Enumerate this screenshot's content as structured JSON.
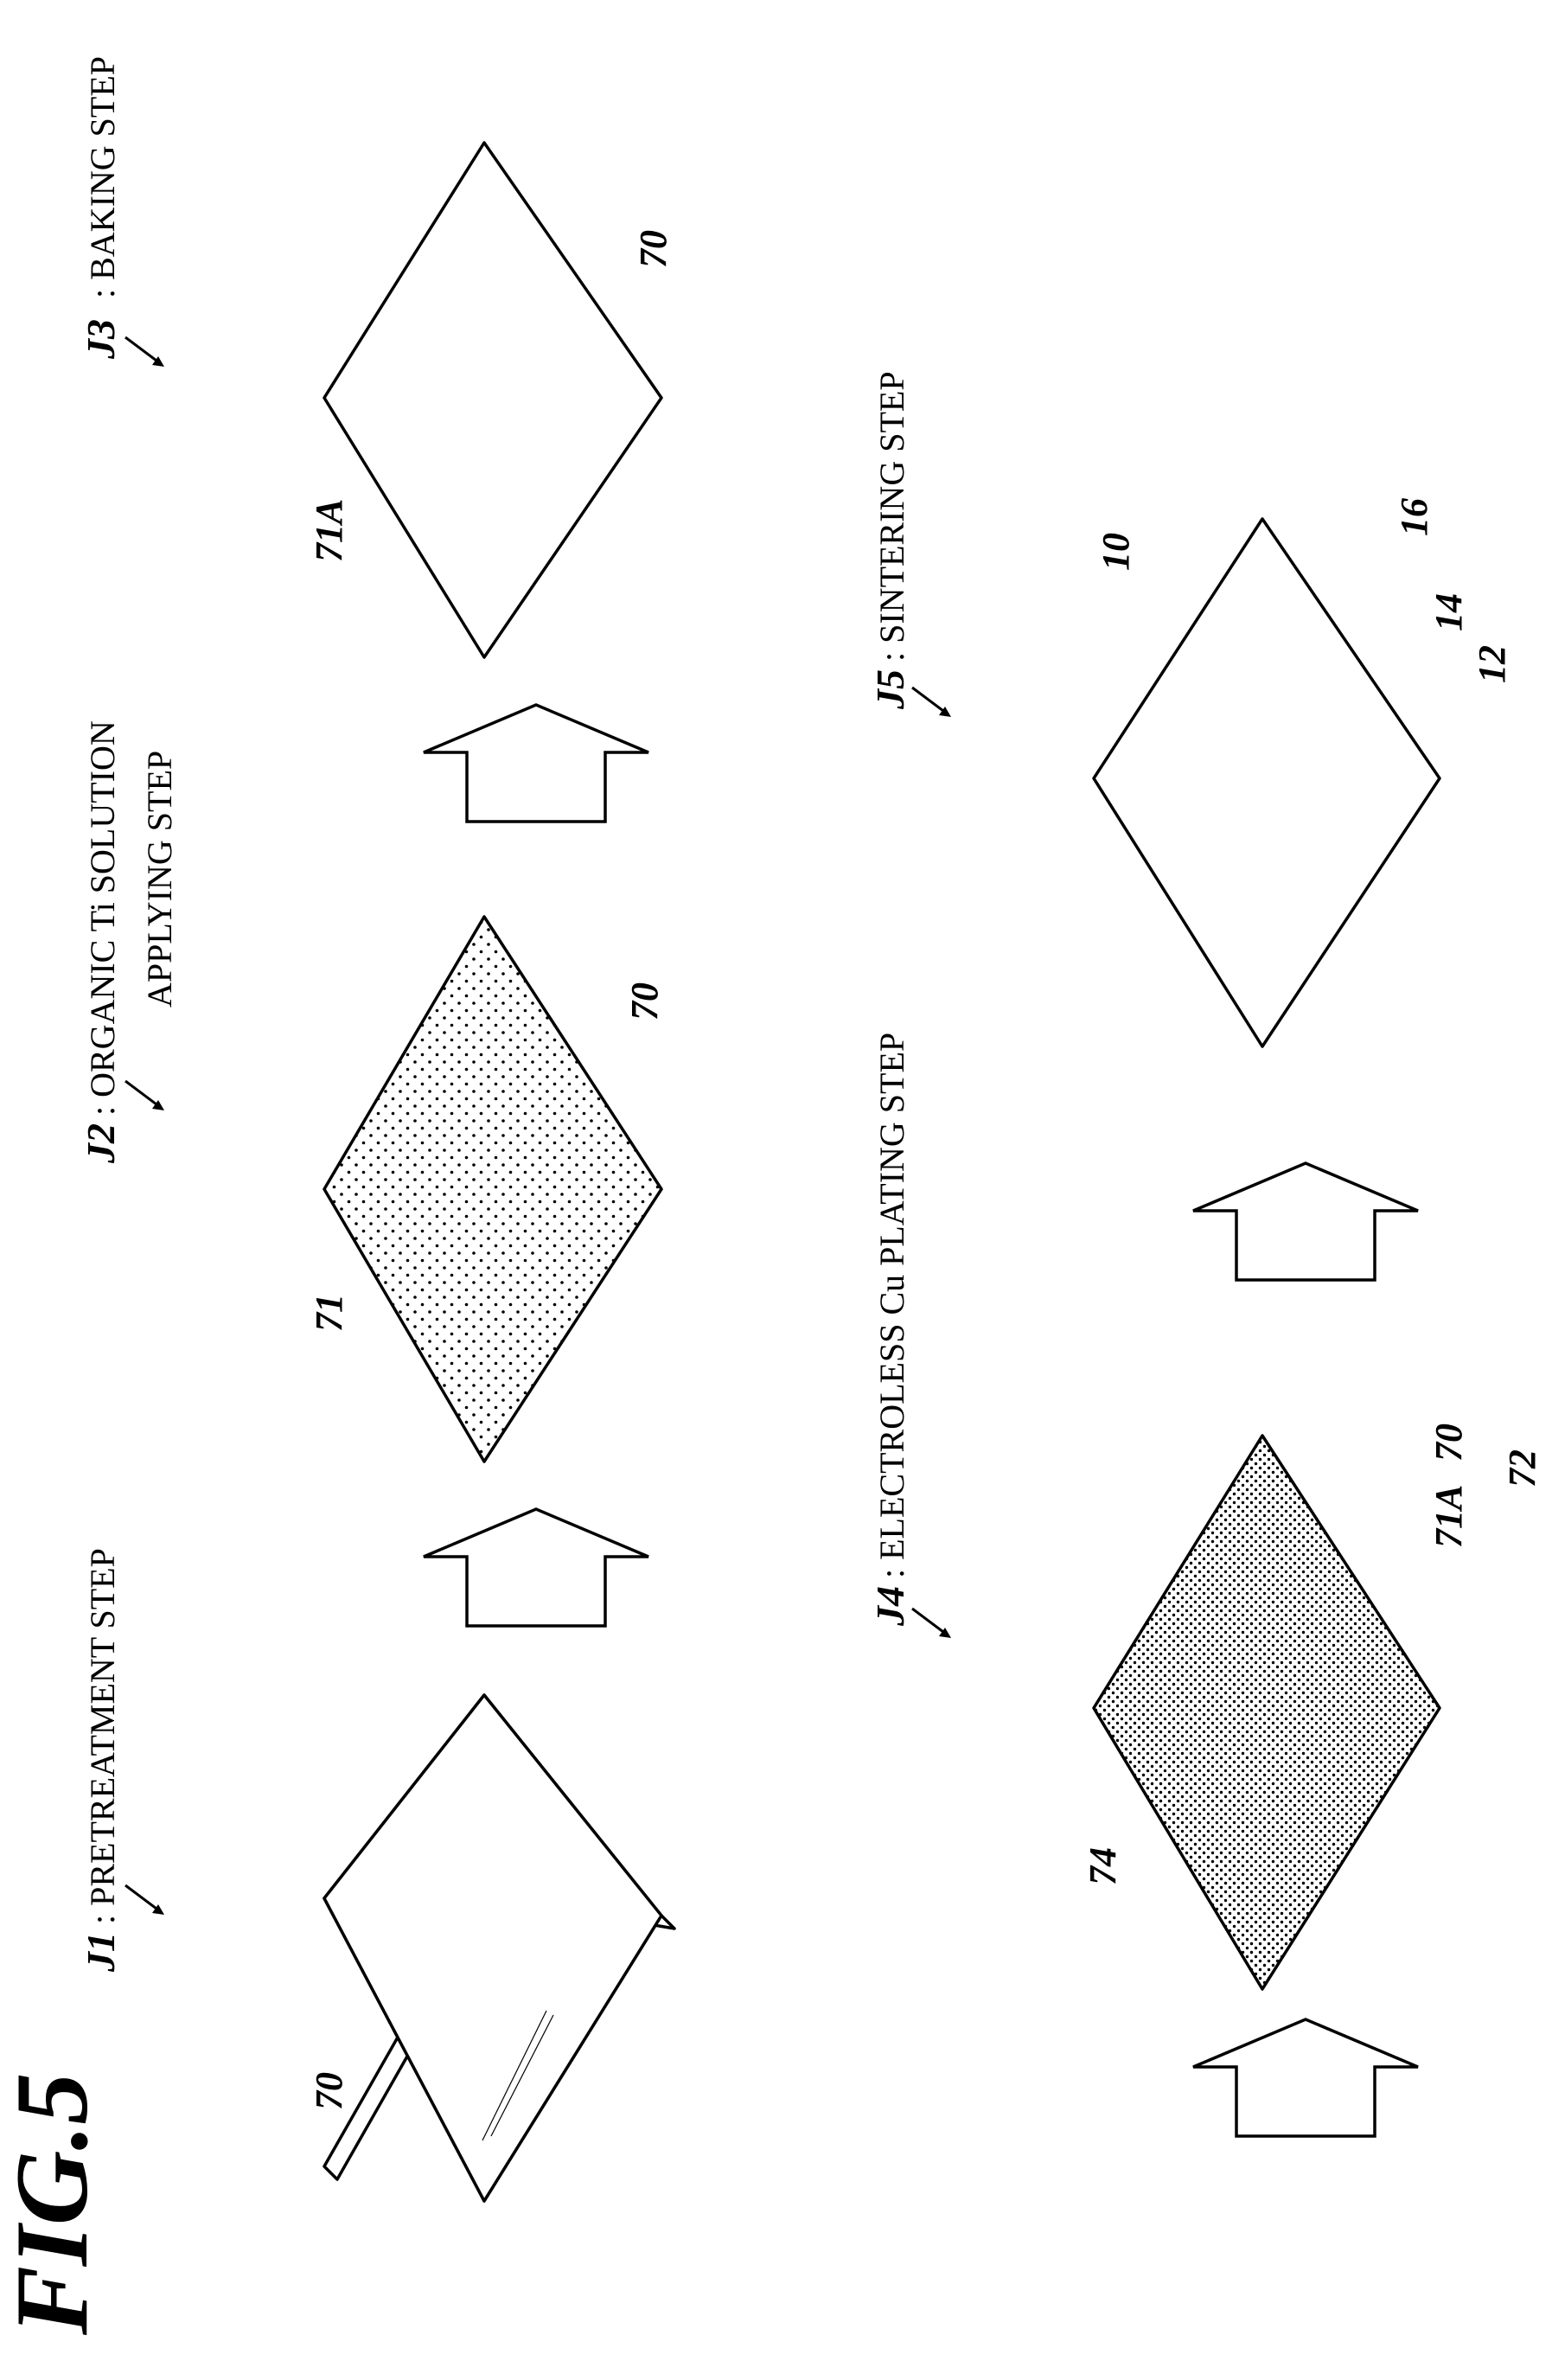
{
  "figure": {
    "title": "FIG.5"
  },
  "steps": [
    {
      "code": "J1",
      "label": ": PRETREATMENT STEP"
    },
    {
      "code": "J2",
      "label_line1": ": ORGANIC Ti SOLUTION",
      "label_line2": "APPLYING STEP"
    },
    {
      "code": "J3",
      "label": ": BAKING STEP"
    },
    {
      "code": "J4",
      "label": ": ELECTROLESS Cu PLATING STEP"
    },
    {
      "code": "J5",
      "label": ": SINTERING STEP"
    }
  ],
  "refs": {
    "j1_substrate": "70",
    "j2_coating": "71",
    "j2_substrate": "70",
    "j3_layer": "71A",
    "j3_substrate": "70",
    "j4_plating": "74",
    "j4_layer": "71A",
    "j4_substrate": "70",
    "j4_group": "72",
    "j5_product": "10",
    "j5_top": "16",
    "j5_middle": "14",
    "j5_bottom": "12"
  },
  "colors": {
    "ink": "#000000",
    "paper": "#ffffff"
  }
}
